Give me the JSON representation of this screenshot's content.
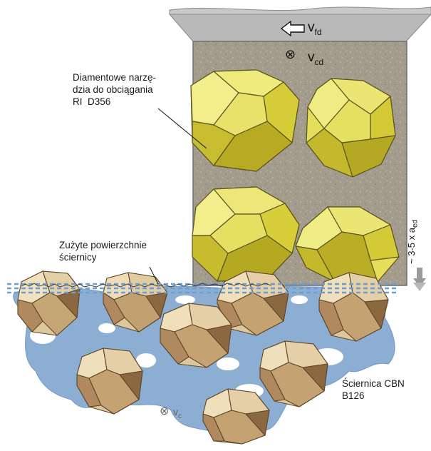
{
  "labels": {
    "tool_line1": "Diamentowe narzę-",
    "tool_line2": "dzia do obciągania",
    "tool_line3": "RI  D356",
    "surface_line1": "Zużyte powierzchnie",
    "surface_line2": "ściernicy",
    "wheel_line1": "Ściernica CBN",
    "wheel_line2": "B126",
    "depth": "~ 3-5 x a",
    "depth_sub": "ed",
    "vfd": "v",
    "vfd_sub": "fd",
    "vcd": "v",
    "vcd_sub": "cd",
    "vc": "v",
    "vc_sub": "c",
    "cross_symbol": "⊗"
  },
  "colors": {
    "dresser_bg": "#a39a8a",
    "diamond_light": "#ecec74",
    "diamond_mid": "#d8cf3c",
    "diamond_dark": "#a8981a",
    "cbn_light": "#ead7b0",
    "cbn_mid": "#c6a47a",
    "cbn_dark": "#8e6a44",
    "bond_blue": "#8aaed4",
    "dash_blue": "#6f9fd1"
  }
}
